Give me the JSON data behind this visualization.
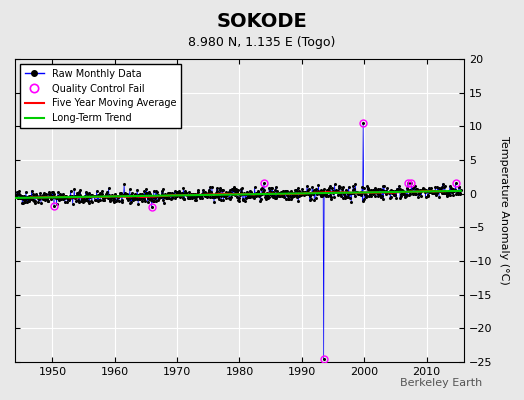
{
  "title": "SOKODE",
  "subtitle": "8.980 N, 1.135 E (Togo)",
  "ylabel": "Temperature Anomaly (°C)",
  "watermark": "Berkeley Earth",
  "xlim": [
    1944,
    2016
  ],
  "ylim": [
    -25,
    20
  ],
  "yticks": [
    -25,
    -20,
    -15,
    -10,
    -5,
    0,
    5,
    10,
    15,
    20
  ],
  "xticks": [
    1950,
    1960,
    1970,
    1980,
    1990,
    2000,
    2010
  ],
  "bg_color": "#e8e8e8",
  "raw_line_color": "#0000ff",
  "raw_dot_color": "#000000",
  "qc_fail_color": "#ff00ff",
  "moving_avg_color": "#ff0000",
  "trend_color": "#00cc00",
  "spike_year": 1993.5,
  "spike_low": -24.5,
  "spike_high": 10.5,
  "spike2_year": 1993.3,
  "spike2_high": 3.0
}
